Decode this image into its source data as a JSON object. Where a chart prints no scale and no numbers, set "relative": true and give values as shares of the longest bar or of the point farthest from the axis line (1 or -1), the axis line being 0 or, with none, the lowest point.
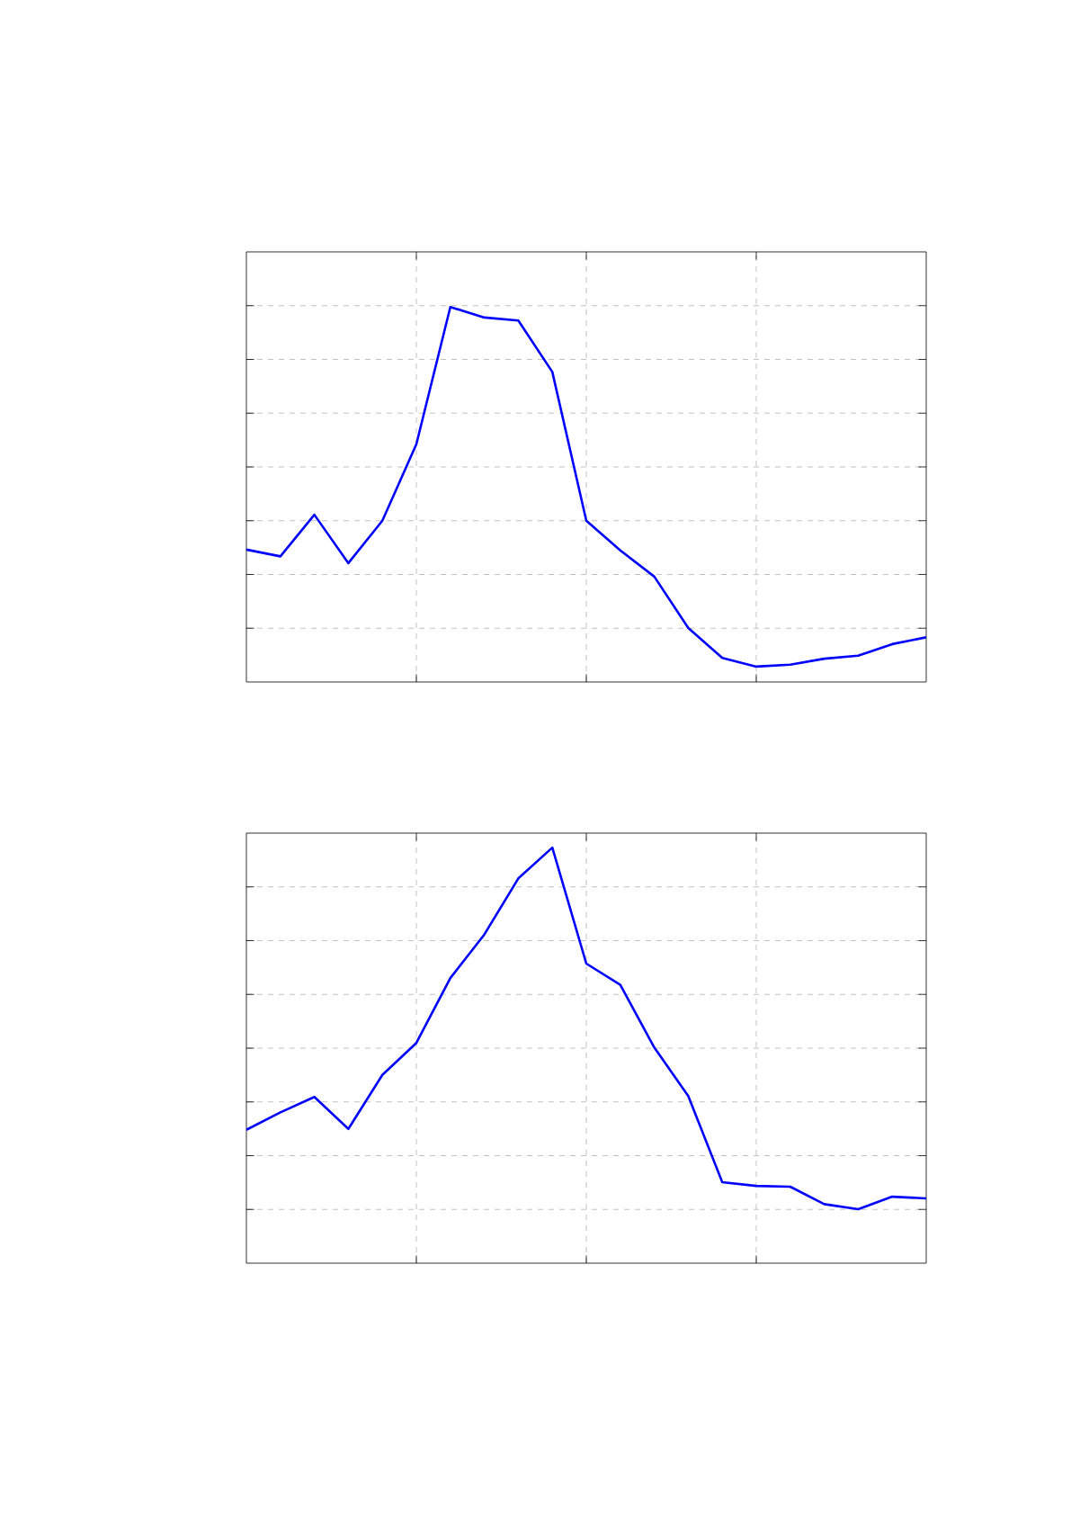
{
  "chart_data": [
    {
      "type": "line",
      "relative": true,
      "grid": true,
      "tick_labels": false,
      "categories": [
        null,
        null,
        null,
        null,
        null,
        null,
        null,
        null,
        null,
        null,
        null,
        null,
        null,
        null,
        null,
        null,
        null,
        null,
        null,
        null,
        null
      ],
      "series": [
        {
          "color": "#0000ff",
          "values": [
            0.353,
            0.335,
            0.446,
            0.317,
            0.43,
            0.634,
            1,
            0.972,
            0.964,
            0.827,
            0.43,
            0.351,
            0.281,
            0.144,
            0.064,
            0.041,
            0.046,
            0.062,
            0.07,
            0.101,
            0.119
          ]
        }
      ]
    },
    {
      "type": "line",
      "relative": true,
      "grid": true,
      "tick_labels": false,
      "categories": [
        null,
        null,
        null,
        null,
        null,
        null,
        null,
        null,
        null,
        null,
        null,
        null,
        null,
        null,
        null,
        null,
        null,
        null,
        null,
        null,
        null
      ],
      "series": [
        {
          "color": "#0000ff",
          "values": [
            0.321,
            0.363,
            0.4,
            0.323,
            0.453,
            0.53,
            0.686,
            0.791,
            0.926,
            1,
            0.721,
            0.67,
            0.519,
            0.402,
            0.195,
            0.186,
            0.184,
            0.142,
            0.13,
            0.16,
            0.156
          ]
        }
      ]
    }
  ]
}
